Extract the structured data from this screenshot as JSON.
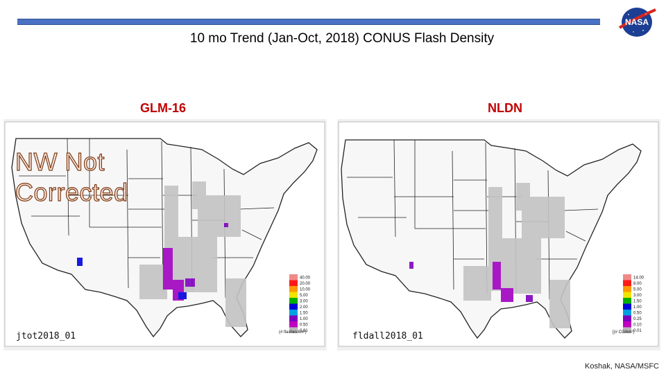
{
  "header": {
    "title": "10 mo Trend (Jan-Oct, 2018) CONUS Flash Density"
  },
  "logo": {
    "text": "NASA"
  },
  "panels": [
    {
      "label": "GLM-16",
      "map_id": "jtot2018_01",
      "units": "(# flashes/km²)",
      "legend": {
        "values": [
          "40.00",
          "20.00",
          "10.00",
          "5.00",
          "3.00",
          "2.00",
          "1.50",
          "1.00",
          "0.50",
          "0.01"
        ],
        "colors": [
          "#f08a8a",
          "#ff1a1a",
          "#ff9900",
          "#f0e400",
          "#00b000",
          "#0000dd",
          "#00a0e0",
          "#8000c0",
          "#c000c0",
          "#b8b8b8"
        ]
      },
      "overlay": [
        "NW Not",
        "Corrected"
      ]
    },
    {
      "label": "NLDN",
      "map_id": "fldall2018_01",
      "units": "[(# CG/km²)",
      "legend": {
        "values": [
          "14.00",
          "8.00",
          "5.00",
          "3.00",
          "1.50",
          "1.00",
          "0.50",
          "0.25",
          "0.10",
          "0.01"
        ],
        "colors": [
          "#f08a8a",
          "#ff1a1a",
          "#ff9900",
          "#f0e400",
          "#00b000",
          "#0000dd",
          "#00a0e0",
          "#8000c0",
          "#c000c0",
          "#b8b8b8"
        ]
      }
    }
  ],
  "footer": {
    "credit": "Koshak, NASA/MSFC"
  }
}
